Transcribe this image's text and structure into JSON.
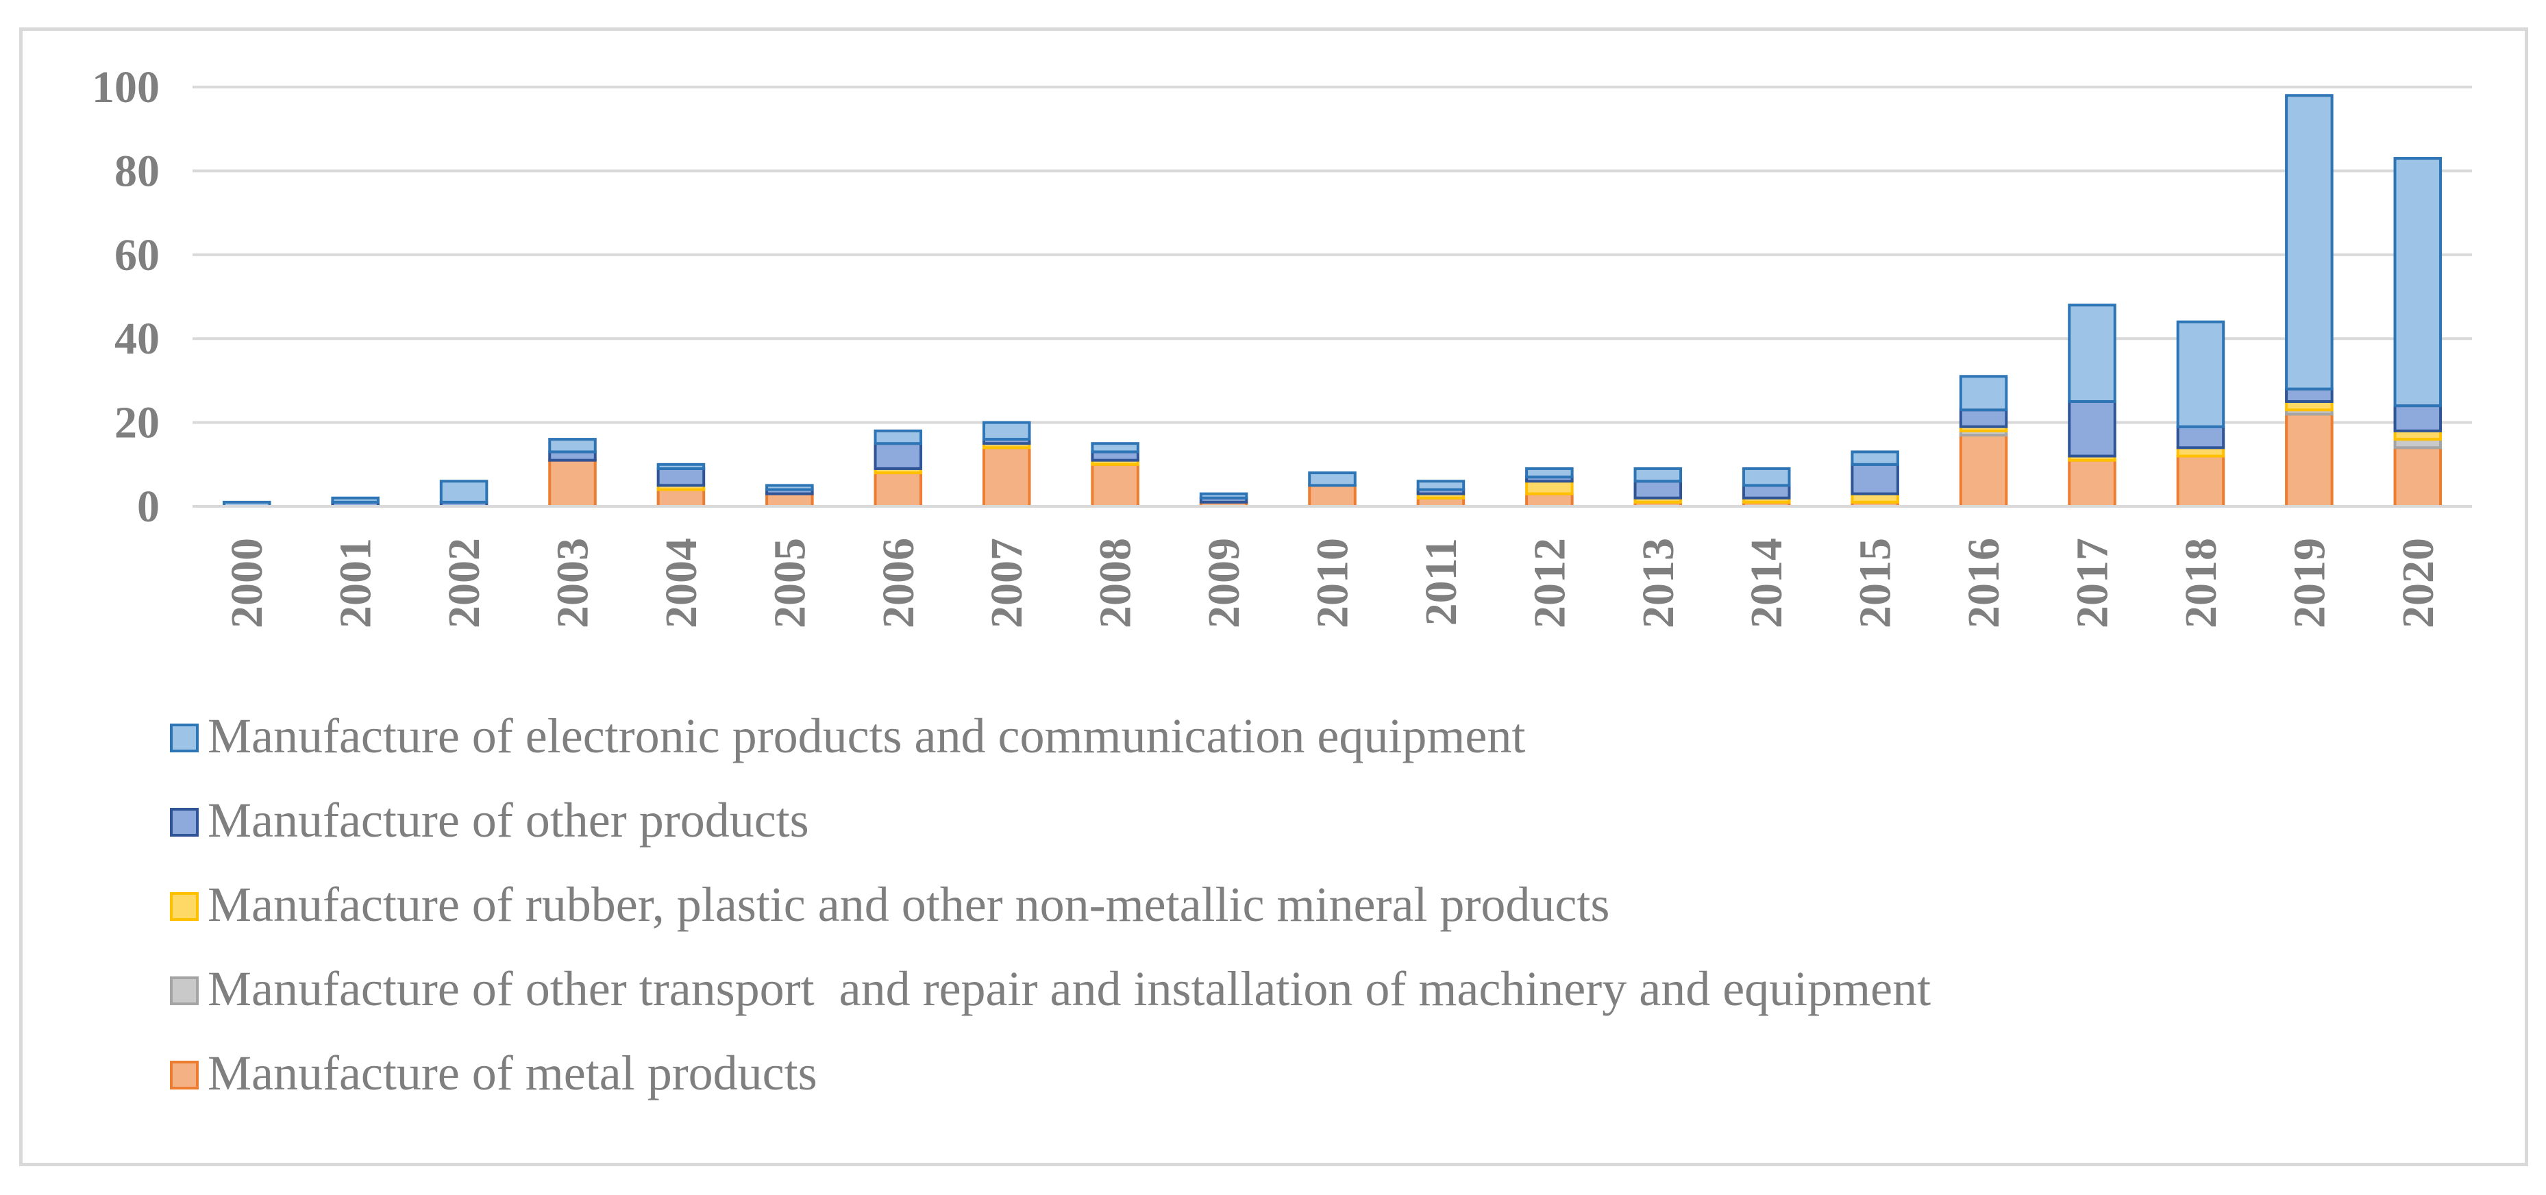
{
  "chart_data": {
    "type": "bar",
    "stacked": true,
    "title": "",
    "xlabel": "",
    "ylabel": "",
    "ylim": [
      0,
      100
    ],
    "y_ticks": [
      0,
      20,
      40,
      60,
      80,
      100
    ],
    "grid": true,
    "legend_position": "bottom-left",
    "categories": [
      "2000",
      "2001",
      "2002",
      "2003",
      "2004",
      "2005",
      "2006",
      "2007",
      "2008",
      "2009",
      "2010",
      "2011",
      "2012",
      "2013",
      "2014",
      "2015",
      "2016",
      "2017",
      "2018",
      "2019",
      "2020"
    ],
    "series": [
      {
        "name": "Manufacture of metal products",
        "color": "#f4b183",
        "stroke": "#ed7d31",
        "values": [
          0,
          0,
          0,
          11,
          4,
          3,
          8,
          14,
          10,
          1,
          5,
          2,
          3,
          1,
          1,
          1,
          17,
          11,
          12,
          22,
          14
        ]
      },
      {
        "name": "Manufacture of other transport  and repair and installation of machinery and equipment",
        "color": "#c9c9c9",
        "stroke": "#a5a5a5",
        "values": [
          0,
          0,
          0,
          0,
          0,
          0,
          0,
          0,
          0,
          0,
          0,
          0,
          0,
          0,
          0,
          0,
          1,
          0,
          0,
          1,
          2
        ]
      },
      {
        "name": "Manufacture of rubber, plastic and other non-metallic mineral products",
        "color": "#ffd966",
        "stroke": "#ffc000",
        "values": [
          0,
          0,
          0,
          0,
          1,
          0,
          1,
          1,
          1,
          0,
          0,
          1,
          3,
          1,
          1,
          2,
          1,
          1,
          2,
          2,
          2
        ]
      },
      {
        "name": "Manufacture of other products",
        "color": "#8ea9db",
        "stroke": "#2f5597",
        "values": [
          0,
          1,
          1,
          2,
          4,
          1,
          6,
          1,
          2,
          1,
          0,
          1,
          1,
          4,
          3,
          7,
          4,
          13,
          5,
          3,
          6
        ]
      },
      {
        "name": "Manufacture of electronic products and communication equipment",
        "color": "#9dc3e6",
        "stroke": "#2e75b6",
        "values": [
          1,
          1,
          5,
          3,
          1,
          1,
          3,
          4,
          2,
          1,
          3,
          2,
          2,
          3,
          4,
          3,
          8,
          23,
          25,
          70,
          59
        ]
      }
    ],
    "legend_order": [
      "Manufacture of electronic products and communication equipment",
      "Manufacture of other products",
      "Manufacture of rubber, plastic and other non-metallic mineral products",
      "Manufacture of other transport  and repair and installation of machinery and equipment",
      "Manufacture of metal products"
    ]
  }
}
